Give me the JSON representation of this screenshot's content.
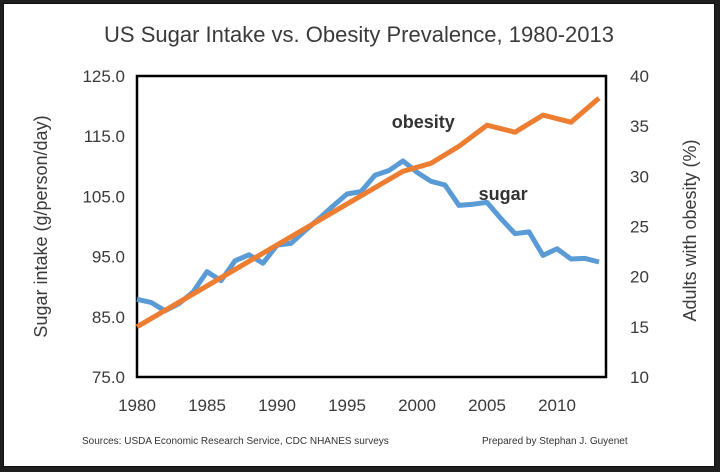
{
  "chart_data": {
    "type": "line",
    "title": "US Sugar Intake vs. Obesity Prevalence, 1980-2013",
    "x": [
      1980,
      1981,
      1982,
      1983,
      1984,
      1985,
      1986,
      1987,
      1988,
      1989,
      1990,
      1991,
      1992,
      1993,
      1994,
      1995,
      1996,
      1997,
      1998,
      1999,
      2000,
      2001,
      2002,
      2003,
      2004,
      2005,
      2006,
      2007,
      2008,
      2009,
      2010,
      2011,
      2012,
      2013
    ],
    "xticks": [
      1980,
      1985,
      1990,
      1995,
      2000,
      2005,
      2010
    ],
    "y_left": {
      "label": "Sugar intake (g/person/day)",
      "range": [
        75,
        125
      ],
      "ticks": [
        "75.0",
        "85.0",
        "95.0",
        "105.0",
        "115.0",
        "125.0"
      ]
    },
    "y_right": {
      "label": "Adults with obesity (%)",
      "range": [
        10,
        40
      ],
      "ticks": [
        "10",
        "15",
        "20",
        "25",
        "30",
        "35",
        "40"
      ]
    },
    "series": [
      {
        "name": "sugar",
        "axis": "left",
        "color": "#5b9bd5",
        "x": [
          1980,
          1981,
          1982,
          1983,
          1984,
          1985,
          1986,
          1987,
          1988,
          1989,
          1990,
          1991,
          1992,
          1993,
          1994,
          1995,
          1996,
          1997,
          1998,
          1999,
          2000,
          2001,
          2002,
          2003,
          2004,
          2005,
          2006,
          2007,
          2008,
          2009,
          2010,
          2011,
          2012,
          2013
        ],
        "values": [
          87.9,
          87.4,
          86.0,
          87.2,
          89.1,
          92.5,
          91.0,
          94.3,
          95.3,
          93.9,
          96.9,
          97.2,
          99.3,
          101.3,
          103.4,
          105.4,
          105.8,
          108.5,
          109.3,
          110.9,
          109.0,
          107.5,
          106.9,
          103.5,
          103.7,
          104.0,
          101.3,
          98.8,
          99.1,
          95.2,
          96.3,
          94.6,
          94.7,
          94.1
        ]
      },
      {
        "name": "obesity",
        "axis": "right",
        "color": "#ed7d31",
        "x": [
          1980,
          1999,
          2001,
          2003,
          2005,
          2007,
          2009,
          2011,
          2013
        ],
        "values": [
          15.0,
          30.5,
          31.3,
          33.0,
          35.1,
          34.4,
          36.1,
          35.4,
          37.8
        ]
      }
    ]
  },
  "footer": {
    "sources": "Sources: USDA Economic Research Service, CDC NHANES surveys",
    "credit": "Prepared by Stephan J. Guyenet"
  }
}
